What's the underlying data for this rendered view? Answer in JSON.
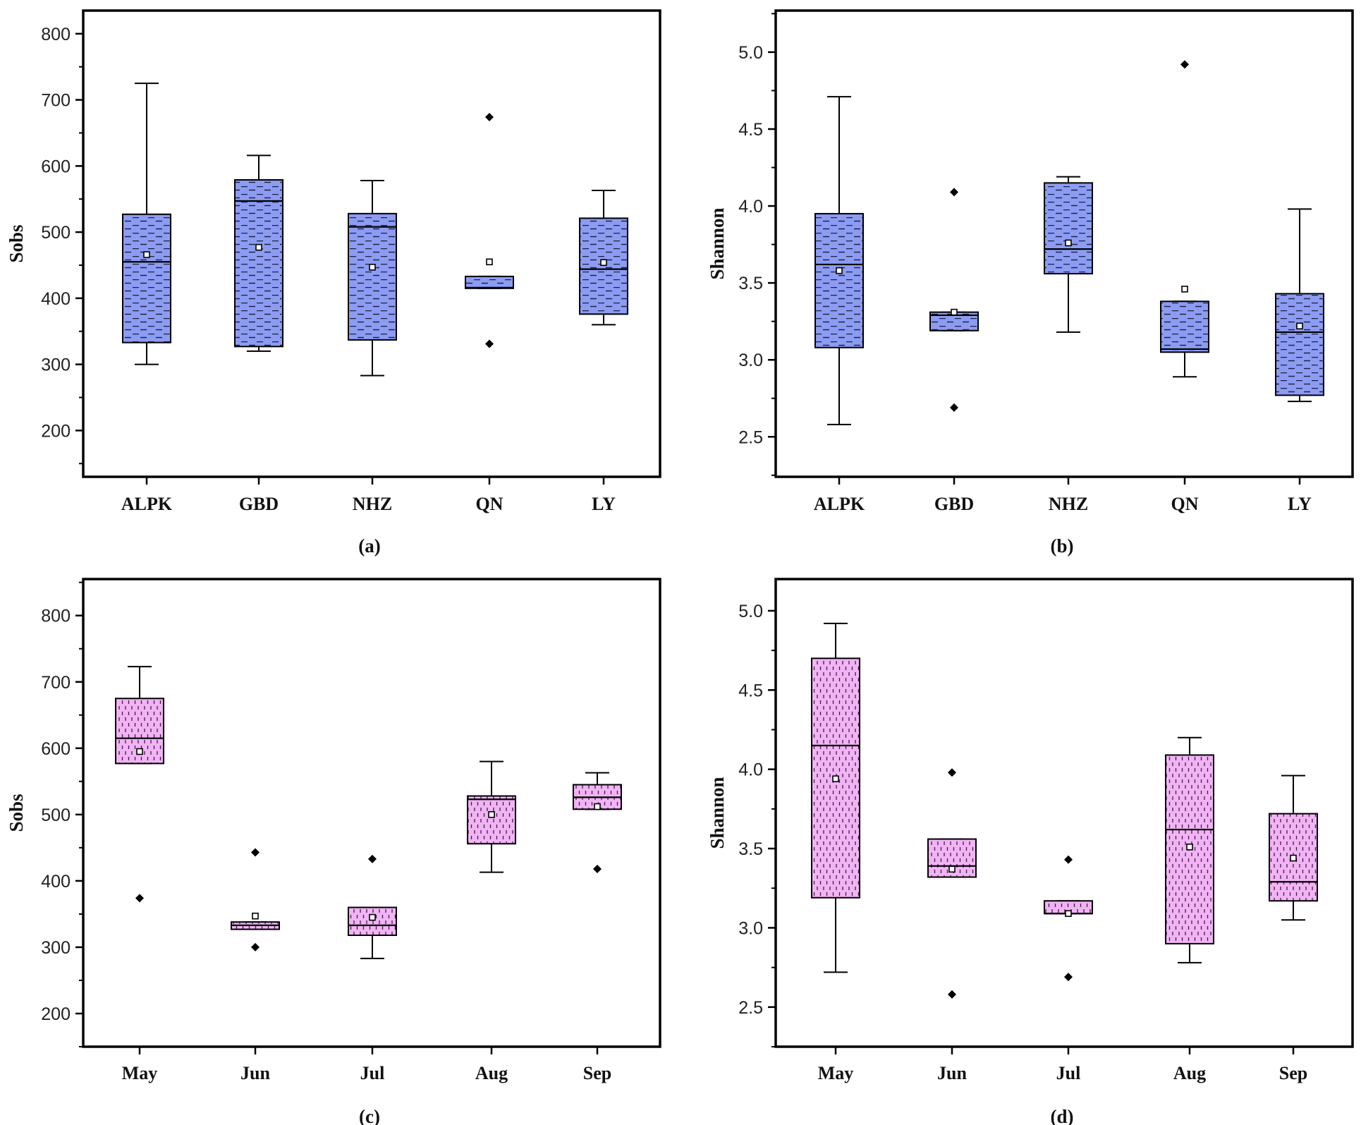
{
  "chart_data": [
    {
      "type": "box",
      "panel_label": "(a)",
      "ylabel": "Sobs",
      "xlabel": "",
      "ylim": [
        130,
        835
      ],
      "yticks": [
        200,
        300,
        400,
        500,
        600,
        700,
        800
      ],
      "box_color": "#8c9cf2",
      "pattern": "dash",
      "categories": [
        "ALPK",
        "GBD",
        "NHZ",
        "QN",
        "LY"
      ],
      "boxes": [
        {
          "whisker_low": 300,
          "q1": 333,
          "median": 455,
          "q3": 527,
          "whisker_high": 725,
          "mean": 466,
          "outliers": []
        },
        {
          "whisker_low": 320,
          "q1": 327,
          "median": 547,
          "q3": 579,
          "whisker_high": 616,
          "mean": 477,
          "outliers": []
        },
        {
          "whisker_low": 283,
          "q1": 337,
          "median": 508,
          "q3": 528,
          "whisker_high": 578,
          "mean": 447,
          "outliers": []
        },
        {
          "whisker_low": 415,
          "q1": 415,
          "median": 416,
          "q3": 433,
          "whisker_high": 433,
          "mean": 455,
          "outliers": [
            331,
            674
          ]
        },
        {
          "whisker_low": 360,
          "q1": 376,
          "median": 444,
          "q3": 521,
          "whisker_high": 563,
          "mean": 454,
          "outliers": []
        }
      ]
    },
    {
      "type": "box",
      "panel_label": "(b)",
      "ylabel": "Shannon",
      "xlabel": "",
      "ylim": [
        2.24,
        5.27
      ],
      "yticks": [
        2.5,
        3.0,
        3.5,
        4.0,
        4.5,
        5.0
      ],
      "box_color": "#8c9cf2",
      "pattern": "dash",
      "categories": [
        "ALPK",
        "GBD",
        "NHZ",
        "QN",
        "LY"
      ],
      "boxes": [
        {
          "whisker_low": 2.58,
          "q1": 3.08,
          "median": 3.62,
          "q3": 3.95,
          "whisker_high": 4.71,
          "mean": 3.58,
          "outliers": []
        },
        {
          "whisker_low": 3.19,
          "q1": 3.19,
          "median": 3.29,
          "q3": 3.31,
          "whisker_high": 3.31,
          "mean": 3.31,
          "outliers": [
            2.69,
            4.09
          ]
        },
        {
          "whisker_low": 3.18,
          "q1": 3.56,
          "median": 3.72,
          "q3": 4.15,
          "whisker_high": 4.19,
          "mean": 3.76,
          "outliers": []
        },
        {
          "whisker_low": 2.89,
          "q1": 3.05,
          "median": 3.07,
          "q3": 3.38,
          "whisker_high": 3.38,
          "mean": 3.46,
          "outliers": [
            4.92
          ]
        },
        {
          "whisker_low": 2.73,
          "q1": 2.77,
          "median": 3.18,
          "q3": 3.43,
          "whisker_high": 3.98,
          "mean": 3.22,
          "outliers": []
        }
      ]
    },
    {
      "type": "box",
      "panel_label": "(c)",
      "ylabel": "Sobs",
      "xlabel": "",
      "ylim": [
        150,
        855
      ],
      "yticks": [
        200,
        300,
        400,
        500,
        600,
        700,
        800
      ],
      "box_color": "#f2b3f5",
      "pattern": "dots",
      "categories": [
        "May",
        "Jun",
        "Jul",
        "Aug",
        "Sep"
      ],
      "boxes": [
        {
          "whisker_low": 577,
          "q1": 577,
          "median": 615,
          "q3": 675,
          "whisker_high": 723,
          "mean": 595,
          "outliers": [
            374
          ]
        },
        {
          "whisker_low": 327,
          "q1": 327,
          "median": 333,
          "q3": 338,
          "whisker_high": 338,
          "mean": 347,
          "outliers": [
            300,
            443
          ]
        },
        {
          "whisker_low": 283,
          "q1": 318,
          "median": 333,
          "q3": 360,
          "whisker_high": 360,
          "mean": 345,
          "outliers": [
            433
          ]
        },
        {
          "whisker_low": 413,
          "q1": 456,
          "median": 523,
          "q3": 528,
          "whisker_high": 580,
          "mean": 500,
          "outliers": []
        },
        {
          "whisker_low": 508,
          "q1": 508,
          "median": 526,
          "q3": 545,
          "whisker_high": 563,
          "mean": 512,
          "outliers": [
            418
          ]
        }
      ]
    },
    {
      "type": "box",
      "panel_label": "(d)",
      "ylabel": "Shannon",
      "xlabel": "",
      "ylim": [
        2.25,
        5.2
      ],
      "yticks": [
        2.5,
        3.0,
        3.5,
        4.0,
        4.5,
        5.0
      ],
      "box_color": "#f2b3f5",
      "pattern": "dots",
      "categories": [
        "May",
        "Jun",
        "Jul",
        "Aug",
        "Sep"
      ],
      "boxes": [
        {
          "whisker_low": 2.72,
          "q1": 3.19,
          "median": 4.15,
          "q3": 4.7,
          "whisker_high": 4.92,
          "mean": 3.94,
          "outliers": []
        },
        {
          "whisker_low": 3.32,
          "q1": 3.32,
          "median": 3.39,
          "q3": 3.56,
          "whisker_high": 3.56,
          "mean": 3.37,
          "outliers": [
            2.58,
            3.98
          ]
        },
        {
          "whisker_low": 3.09,
          "q1": 3.09,
          "median": 3.09,
          "q3": 3.17,
          "whisker_high": 3.17,
          "mean": 3.09,
          "outliers": [
            2.69,
            3.43
          ]
        },
        {
          "whisker_low": 2.78,
          "q1": 2.9,
          "median": 3.62,
          "q3": 4.09,
          "whisker_high": 4.2,
          "mean": 3.51,
          "outliers": []
        },
        {
          "whisker_low": 3.05,
          "q1": 3.17,
          "median": 3.29,
          "q3": 3.72,
          "whisker_high": 3.96,
          "mean": 3.44,
          "outliers": []
        }
      ]
    }
  ]
}
